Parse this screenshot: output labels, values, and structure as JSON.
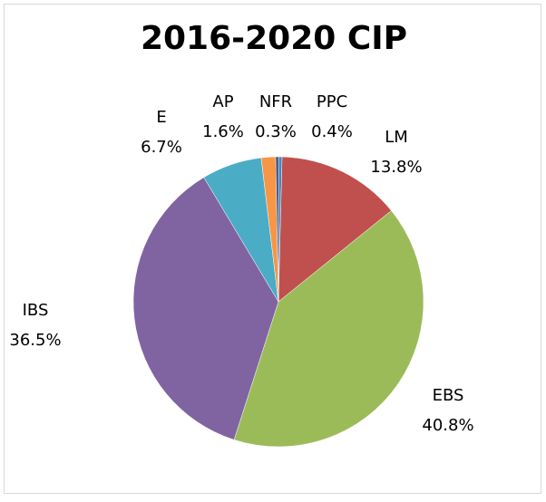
{
  "chart_data": {
    "type": "pie",
    "title": "2016-2020 CIP",
    "categories": [
      "PPC",
      "LM",
      "EBS",
      "IBS",
      "E",
      "AP",
      "NFR"
    ],
    "values": [
      0.4,
      13.8,
      40.8,
      36.5,
      6.7,
      1.6,
      0.3
    ],
    "value_labels": [
      "0.4%",
      "13.8%",
      "40.8%",
      "36.5%",
      "6.7%",
      "1.6%",
      "0.3%"
    ],
    "colors": [
      "#4F81BD",
      "#C0504D",
      "#9BBB59",
      "#8064A2",
      "#4BACC6",
      "#F79646",
      "#2C4D75"
    ]
  }
}
